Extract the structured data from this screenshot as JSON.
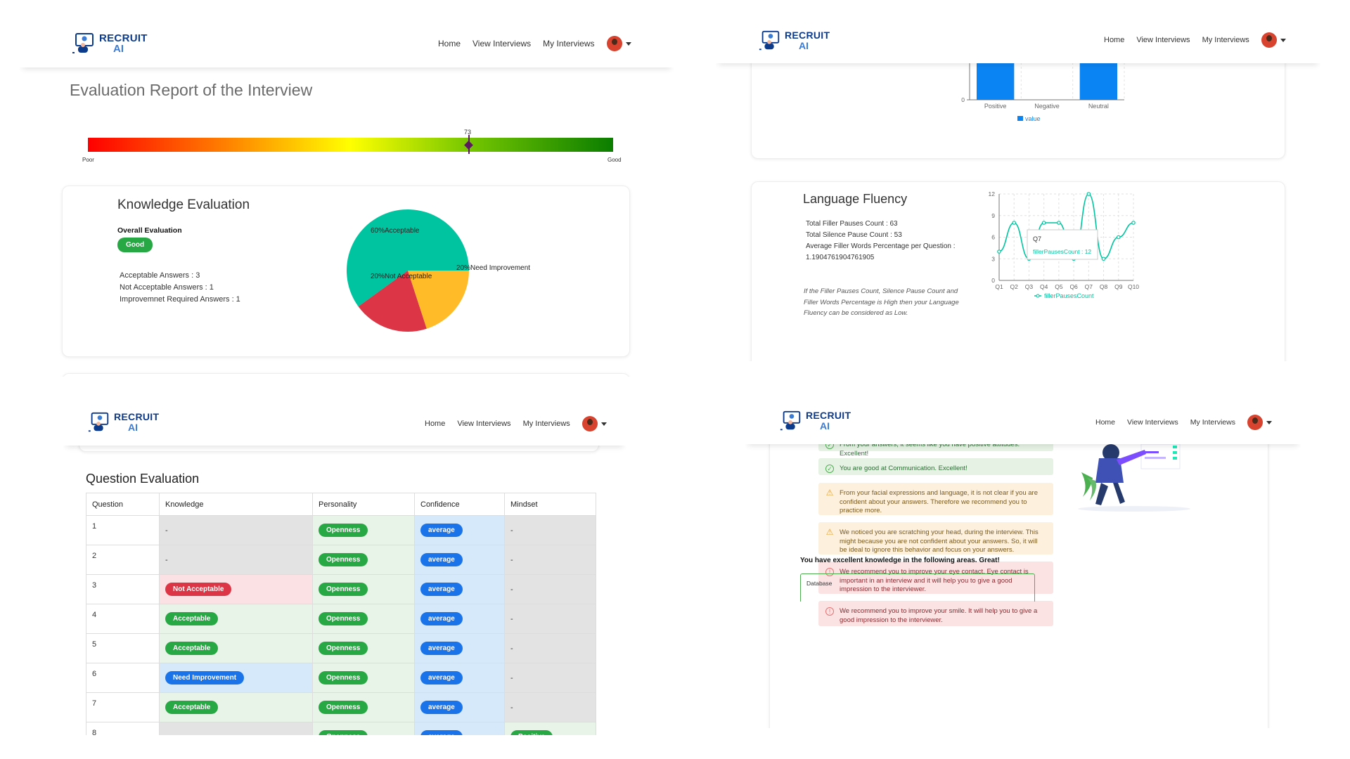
{
  "brand": {
    "line1": "RECRUIT",
    "line2": "AI"
  },
  "nav": {
    "home": "Home",
    "view_interviews": "View Interviews",
    "my_interviews": "My Interviews"
  },
  "report": {
    "title": "Evaluation Report of the Interview",
    "gauge": {
      "value": "73",
      "value_fraction": 0.73,
      "low_label": "Poor",
      "high_label": "Good"
    }
  },
  "knowledge": {
    "title": "Knowledge Evaluation",
    "overall_label": "Overall Evaluation",
    "overall_badge": "Good",
    "lines": [
      "Acceptable Answers : 3",
      "Not Acceptable Answers : 1",
      "Improvemnet Required Answers : 1"
    ]
  },
  "fluency": {
    "title": "Language Fluency",
    "lines": [
      "Total Filler Pauses Count : 63",
      "Total Silence Pause Count : 53",
      "Average Filler Words Percentage per Question :",
      "1.1904761904761905"
    ],
    "note": "If the Filler Pauses Count, Silence Pause Count and Filler Words Percentage is High then your Language Fluency can be considered as Low.",
    "tooltip_title": "Q7",
    "tooltip_value": "fillerPausesCount : 12"
  },
  "question_eval": {
    "title": "Question Evaluation",
    "headers": [
      "Question",
      "Knowledge",
      "Personality",
      "Confidence",
      "Mindset"
    ],
    "rows": [
      {
        "q": "1",
        "knowledge": "-",
        "personality": "Openness",
        "confidence": "average",
        "mindset": "-"
      },
      {
        "q": "2",
        "knowledge": "-",
        "personality": "Openness",
        "confidence": "average",
        "mindset": "-"
      },
      {
        "q": "3",
        "knowledge": "Not Acceptable",
        "personality": "Openness",
        "confidence": "average",
        "mindset": "-"
      },
      {
        "q": "4",
        "knowledge": "Acceptable",
        "personality": "Openness",
        "confidence": "average",
        "mindset": "-"
      },
      {
        "q": "5",
        "knowledge": "Acceptable",
        "personality": "Openness",
        "confidence": "average",
        "mindset": "-"
      },
      {
        "q": "6",
        "knowledge": "Need Improvement",
        "personality": "Openness",
        "confidence": "average",
        "mindset": "-"
      },
      {
        "q": "7",
        "knowledge": "Acceptable",
        "personality": "Openness",
        "confidence": "average",
        "mindset": "-"
      },
      {
        "q": "8",
        "knowledge": "-",
        "personality": "Openness",
        "confidence": "average",
        "mindset": "Positive"
      }
    ]
  },
  "recommendations": {
    "items": [
      {
        "type": "ok",
        "text": "From your answers, it seems like you have positive attitudes. Excellent!"
      },
      {
        "type": "ok",
        "text": "You are good at Communication. Excellent!"
      },
      {
        "type": "warn",
        "text": "From your facial expressions and language, it is not clear if you are confident about your answers. Therefore we recommend you to practice more."
      },
      {
        "type": "warn",
        "text": "We noticed you are scratching your head, during the interview. This might because you are not confident about your answers. So, it will be ideal to ignore this behavior and focus on your answers."
      },
      {
        "type": "err",
        "text": "We recommend you to improve your eye contact. Eye contact is important in an interview and it will help you to give a good impression to the interviewer."
      },
      {
        "type": "err",
        "text": "We recommend you to improve your smile. It will help you to give a good impression to the interviewer."
      }
    ],
    "knowledge_heading": "You have excellent knowledge in the following areas. Great!",
    "knowledge_areas": [
      "Database"
    ]
  },
  "colors": {
    "accent": "#1a73e8",
    "teal": "#00c49f",
    "red": "#dc3545",
    "amber": "#ffbb28",
    "green": "#28a745"
  },
  "chart_data": [
    {
      "type": "pie",
      "labels": [
        "Acceptable",
        "Not Acceptable",
        "Need Improvement"
      ],
      "values": [
        60,
        20,
        20
      ],
      "slice_labels": [
        "60%Acceptable",
        "20%Not Acceptable",
        "20%Need Improvement"
      ],
      "colors": [
        "#00c49f",
        "#dc3545",
        "#ffbb28"
      ]
    },
    {
      "type": "bar",
      "categories": [
        "Positive",
        "Negative",
        "Neutral"
      ],
      "series": [
        {
          "name": "value",
          "values": [
            1,
            0,
            1
          ]
        }
      ],
      "yticks": [
        "0",
        "0.5",
        "1"
      ],
      "ylim": [
        0,
        1
      ],
      "legend": "bottom",
      "color": "#0b84f3"
    },
    {
      "type": "line",
      "categories": [
        "Q1",
        "Q2",
        "Q3",
        "Q4",
        "Q5",
        "Q6",
        "Q7",
        "Q8",
        "Q9",
        "Q10"
      ],
      "series": [
        {
          "name": "fillerPausesCount",
          "values": [
            4,
            8,
            3,
            8,
            8,
            3,
            12,
            3,
            6,
            8
          ]
        }
      ],
      "yticks": [
        "0",
        "3",
        "6",
        "9",
        "12"
      ],
      "ylim": [
        0,
        12
      ],
      "legend": "bottom",
      "grid": true,
      "color": "#00c49f"
    }
  ]
}
